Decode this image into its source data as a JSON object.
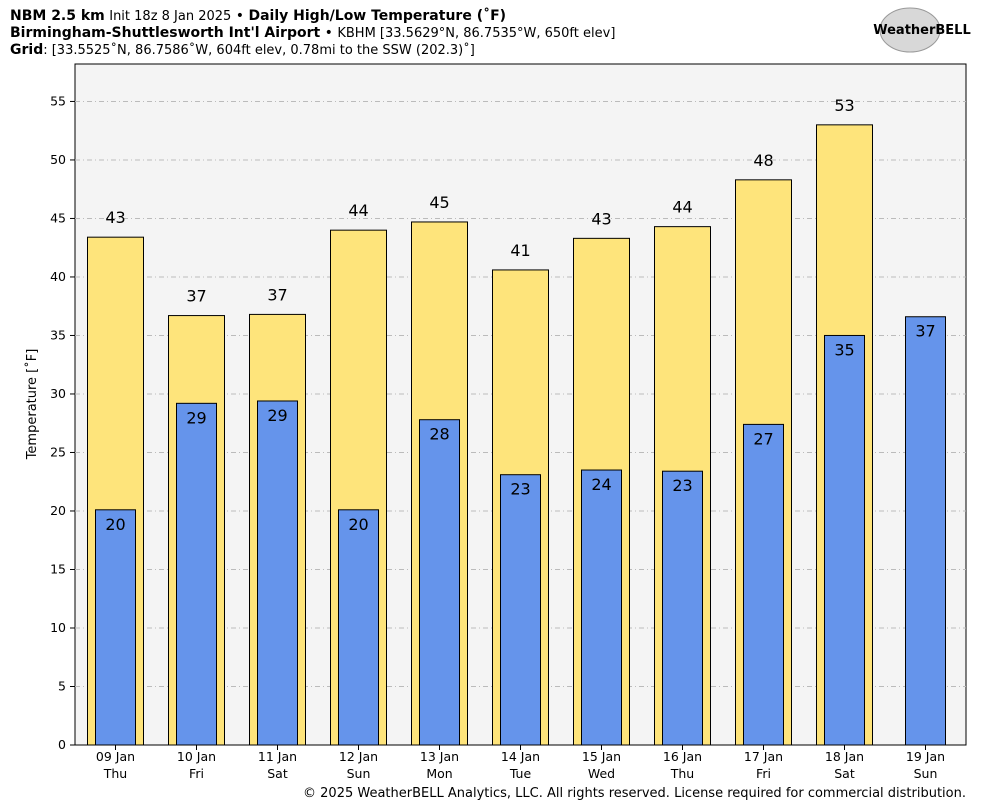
{
  "chart_data": {
    "type": "bar",
    "header": {
      "line1": [
        "NBM 2.5 km",
        "Init 18z 8 Jan 2025",
        "•",
        "Daily High/Low Temperature (˚F)"
      ],
      "line2": [
        "Birmingham-Shuttlesworth Int'l Airport",
        "•",
        "KBHM [33.5629°N, 86.7535°W, 650ft elev]"
      ],
      "line3": [
        "Grid",
        ": [33.5525˚N, 86.7586˚W, 604ft elev, 0.78mi to the SSW (202.3)˚]"
      ]
    },
    "logo": "WeatherBELL",
    "footer": "© 2025 WeatherBELL Analytics, LLC. All rights reserved. License required for commercial distribution.",
    "ylabel": "Temperature [˚F]",
    "categories": [
      [
        "09 Jan",
        "Thu"
      ],
      [
        "10 Jan",
        "Fri"
      ],
      [
        "11 Jan",
        "Sat"
      ],
      [
        "12 Jan",
        "Sun"
      ],
      [
        "13 Jan",
        "Mon"
      ],
      [
        "14 Jan",
        "Tue"
      ],
      [
        "15 Jan",
        "Wed"
      ],
      [
        "16 Jan",
        "Thu"
      ],
      [
        "17 Jan",
        "Fri"
      ],
      [
        "18 Jan",
        "Sat"
      ],
      [
        "19 Jan",
        "Sun"
      ]
    ],
    "series": [
      {
        "name": "High",
        "color": "#fee47b",
        "values": [
          43.4,
          36.7,
          36.8,
          44.0,
          44.7,
          40.6,
          43.3,
          44.3,
          48.3,
          53.0,
          null
        ],
        "value_labels": [
          "43",
          "37",
          "37",
          "44",
          "45",
          "41",
          "43",
          "44",
          "48",
          "53",
          null
        ]
      },
      {
        "name": "Low",
        "color": "#6594eb",
        "values": [
          20.1,
          29.2,
          29.4,
          20.1,
          27.8,
          23.1,
          23.5,
          23.4,
          27.4,
          35.0,
          36.6
        ],
        "value_labels": [
          "20",
          "29",
          "29",
          "20",
          "28",
          "23",
          "24",
          "23",
          "27",
          "35",
          "37"
        ]
      }
    ],
    "ylim": [
      0,
      58.2
    ],
    "yticks": [
      0,
      5,
      10,
      15,
      20,
      25,
      30,
      35,
      40,
      45,
      50,
      55
    ],
    "grid": true
  }
}
